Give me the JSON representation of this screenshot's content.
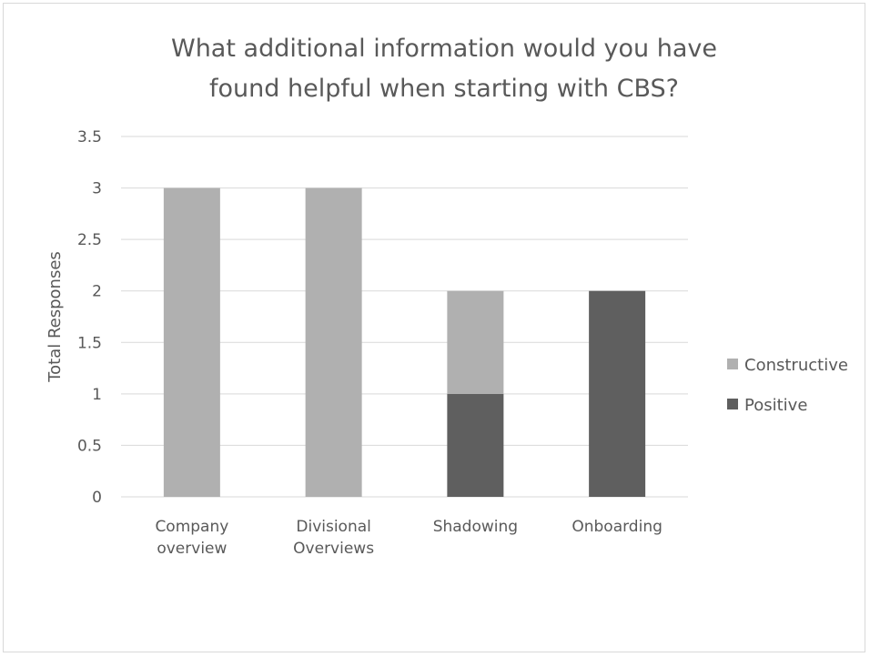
{
  "chart_data": {
    "type": "bar",
    "stacked": true,
    "title": [
      "What additional information would you have",
      "found helpful when starting with CBS?"
    ],
    "ylabel": "Total Responses",
    "xlabel": "",
    "ylim": [
      0,
      3.5
    ],
    "yticks": [
      "0",
      "0.5",
      "1",
      "1.5",
      "2",
      "2.5",
      "3",
      "3.5"
    ],
    "categories": [
      [
        "Company",
        "overview"
      ],
      [
        "Divisional",
        "Overviews"
      ],
      [
        "Shadowing"
      ],
      [
        "Onboarding"
      ]
    ],
    "series": [
      {
        "name": "Positive",
        "color": "#5f5f5f",
        "values": [
          0,
          0,
          1,
          2
        ]
      },
      {
        "name": "Constructive",
        "color": "#b0b0b0",
        "values": [
          3,
          3,
          1,
          0
        ]
      }
    ],
    "legend": {
      "position": "right",
      "order": [
        "Constructive",
        "Positive"
      ]
    },
    "grid": true,
    "gridline_color": "#d9d9d9"
  }
}
